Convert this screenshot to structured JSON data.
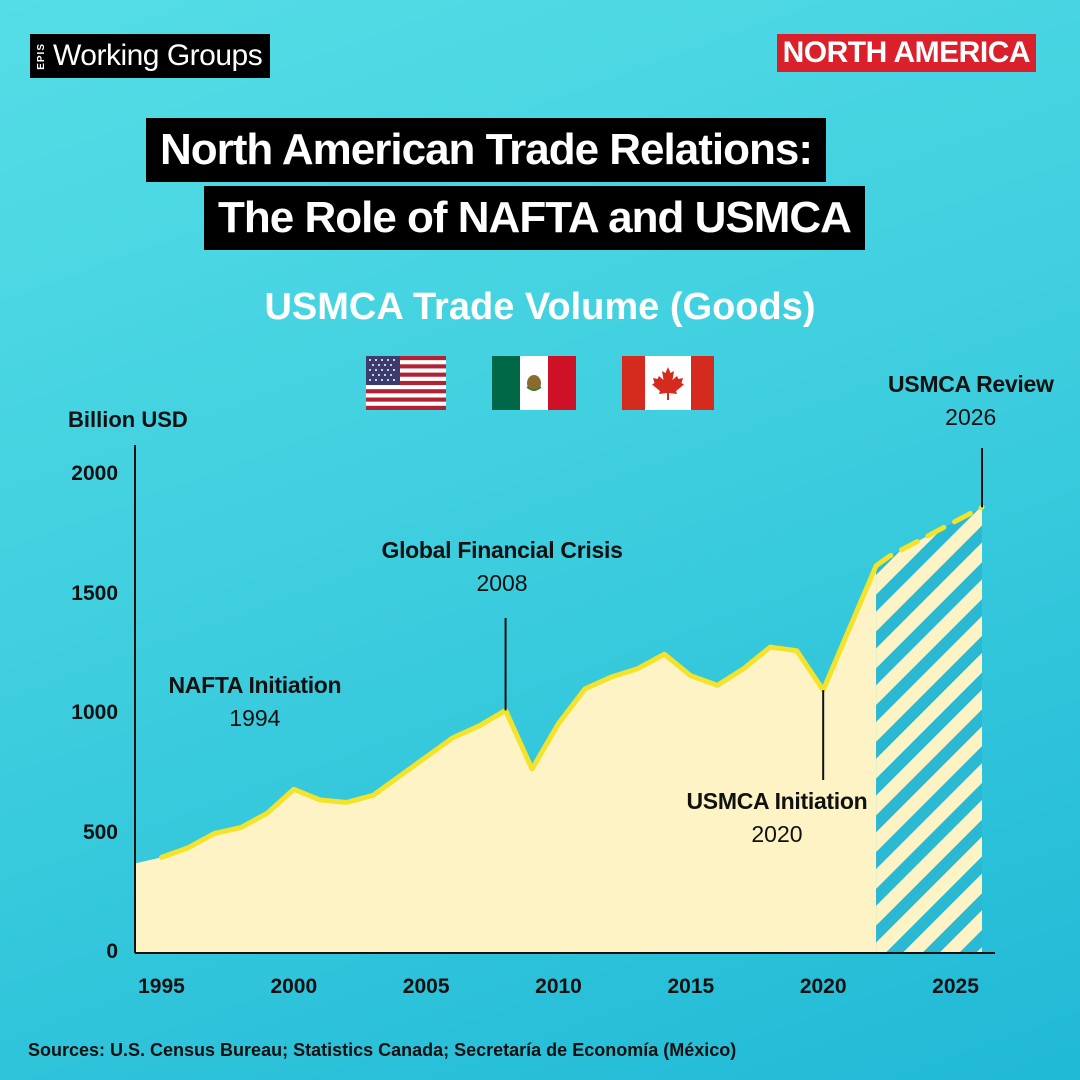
{
  "header": {
    "brand_prefix": "EPIS",
    "brand_name": "Working Groups",
    "region_badge": "NORTH AMERICA"
  },
  "title": {
    "line1": "North American Trade Relations:",
    "line2": "The Role of NAFTA and USMCA"
  },
  "flags": [
    "us-flag",
    "mexico-flag",
    "canada-flag"
  ],
  "sources": "Sources:  U.S. Census Bureau; Statistics Canada; Secretaría de Economía (México)",
  "colors": {
    "background_top": "#55dde6",
    "background_bottom": "#20b9d6",
    "area_fill": "#fdf3c4",
    "line": "#f5e22a",
    "projection_stripe": "#2ab8d2",
    "badge_red": "#d9202b"
  },
  "chart_data": {
    "type": "area",
    "title": "USMCA Trade Volume (Goods)",
    "ylabel": "Billion USD",
    "xlabel": "",
    "ylim": [
      0,
      2000
    ],
    "xlim": [
      1994,
      2026
    ],
    "yticks": [
      0,
      500,
      1000,
      1500,
      2000
    ],
    "xticks": [
      1995,
      2000,
      2005,
      2010,
      2015,
      2020,
      2025
    ],
    "grid": false,
    "series": [
      {
        "values_x": [
          1994,
          1995,
          1996,
          1997,
          1998,
          1999,
          2000,
          2001,
          2002,
          2003,
          2004,
          2005,
          2006,
          2007,
          2008,
          2009,
          2010,
          2011,
          2012,
          2013,
          2014,
          2015,
          2016,
          2017,
          2018,
          2019,
          2020,
          2021,
          2022
        ],
        "values_y": [
          375,
          400,
          440,
          500,
          525,
          585,
          685,
          640,
          630,
          660,
          740,
          820,
          900,
          950,
          1015,
          770,
          960,
          1105,
          1155,
          1190,
          1250,
          1160,
          1120,
          1190,
          1280,
          1265,
          1100,
          1360,
          1620
        ]
      },
      {
        "projection": true,
        "values_x": [
          2022,
          2022.5,
          2026
        ],
        "values_y": [
          1620,
          1660,
          1865
        ]
      }
    ],
    "annotations": [
      {
        "label": "NAFTA Initiation",
        "year": "1994",
        "x": 1994,
        "y": 375
      },
      {
        "label": "Global Financial Crisis",
        "year": "2008",
        "x": 2008,
        "y": 1015
      },
      {
        "label": "USMCA Initiation",
        "year": "2020",
        "x": 2020,
        "y": 1100
      },
      {
        "label": "USMCA Review",
        "year": "2026",
        "x": 2026,
        "y": 1865
      }
    ]
  }
}
